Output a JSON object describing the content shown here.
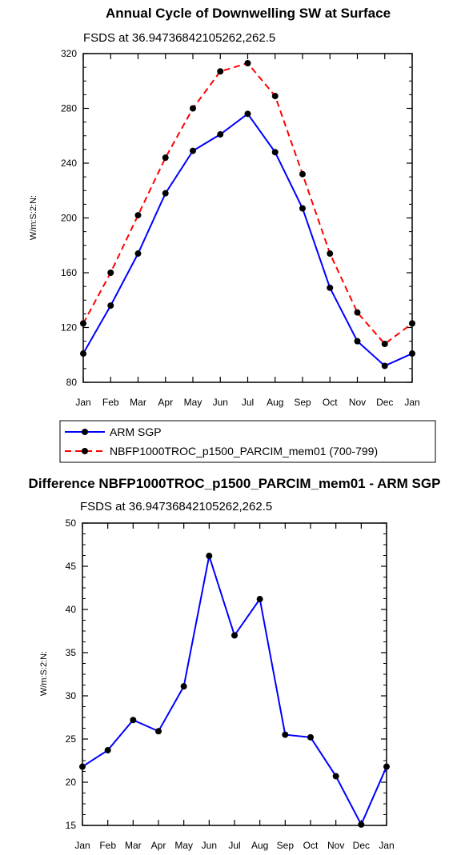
{
  "chart_data": [
    {
      "type": "line",
      "title": "Annual Cycle of Downwelling SW at Surface",
      "subtitle": "FSDS at 36.94736842105262,262.5",
      "xlabel": "",
      "ylabel": "W/m:S:2:N:",
      "categories": [
        "Jan",
        "Feb",
        "Mar",
        "Apr",
        "May",
        "Jun",
        "Jul",
        "Aug",
        "Sep",
        "Oct",
        "Nov",
        "Dec",
        "Jan"
      ],
      "ylim": [
        80,
        320
      ],
      "yticks": [
        80,
        120,
        160,
        200,
        240,
        280,
        320
      ],
      "series": [
        {
          "name": "ARM SGP",
          "color": "#0000ff",
          "dash": "solid",
          "values": [
            101,
            136,
            174,
            218,
            249,
            261,
            276,
            248,
            207,
            149,
            110,
            92,
            101
          ]
        },
        {
          "name": "NBFP1000TROC_p1500_PARCIM_mem01 (700-799)",
          "color": "#ff0000",
          "dash": "dashed",
          "values": [
            123,
            160,
            202,
            244,
            280,
            307,
            313,
            289,
            232,
            174,
            131,
            108,
            123
          ]
        }
      ],
      "legend_position": "bottom"
    },
    {
      "type": "line",
      "title": "Difference NBFP1000TROC_p1500_PARCIM_mem01 - ARM SGP",
      "subtitle": "FSDS at 36.94736842105262,262.5",
      "xlabel": "",
      "ylabel": "W/m:S:2:N:",
      "categories": [
        "Jan",
        "Feb",
        "Mar",
        "Apr",
        "May",
        "Jun",
        "Jul",
        "Aug",
        "Sep",
        "Oct",
        "Nov",
        "Dec",
        "Jan"
      ],
      "ylim": [
        15,
        50
      ],
      "yticks": [
        15,
        20,
        25,
        30,
        35,
        40,
        45,
        50
      ],
      "series": [
        {
          "color": "#0000ff",
          "dash": "solid",
          "values": [
            21.8,
            23.7,
            27.2,
            25.9,
            31.1,
            46.2,
            37.0,
            41.2,
            25.5,
            25.2,
            20.7,
            15.1,
            21.8
          ]
        }
      ]
    }
  ]
}
